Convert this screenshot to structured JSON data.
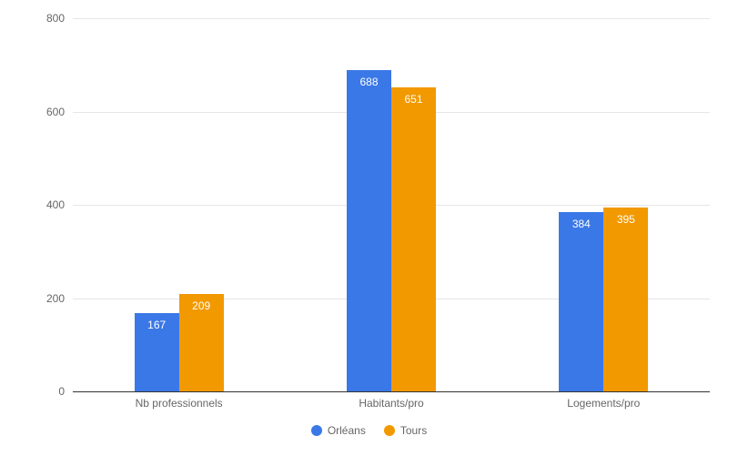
{
  "chart": {
    "type": "bar",
    "background_color": "#ffffff",
    "grid_color": "#e6e6e6",
    "baseline_color": "#333333",
    "tick_font_size": 12,
    "tick_color": "#666666",
    "y": {
      "min": 0,
      "max": 800,
      "step": 200
    },
    "categories": [
      "Nb professionnels",
      "Habitants/pro",
      "Logements/pro"
    ],
    "series": [
      {
        "name": "Orléans",
        "color": "#3b78e7",
        "values": [
          167,
          688,
          384
        ]
      },
      {
        "name": "Tours",
        "color": "#f29900",
        "values": [
          209,
          651,
          395
        ]
      }
    ],
    "bar_width_ratio": 0.21,
    "group_gap_ratio": 0.0,
    "data_label_color": "#ffffff",
    "legend_font_size": 12,
    "legend_text_color": "#666666"
  }
}
